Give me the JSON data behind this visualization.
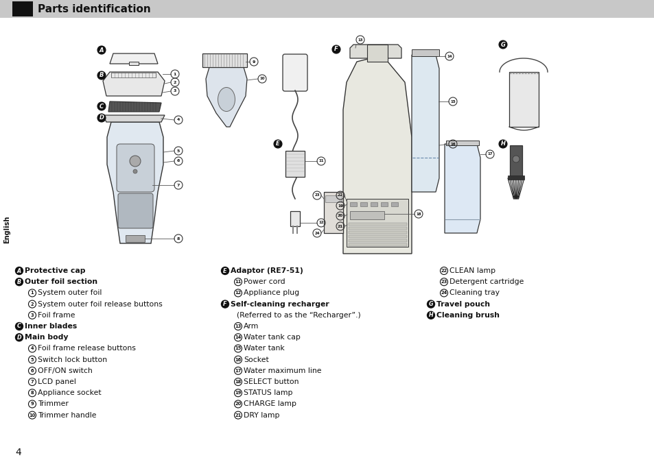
{
  "title": "Parts identification",
  "title_bg": "#c8c8c8",
  "title_black_rect": "#111111",
  "sidebar_label": "English",
  "sidebar_bg": "#ffffff",
  "sidebar_text_color": "#111111",
  "page_bg": "#ffffff",
  "page_number": "4",
  "col1_lines": [
    {
      "icon": "A",
      "bold": true,
      "text": "Protective cap"
    },
    {
      "icon": "B",
      "bold": true,
      "text": "Outer foil section"
    },
    {
      "icon": "1",
      "bold": false,
      "text": "System outer foil"
    },
    {
      "icon": "2",
      "bold": false,
      "text": "System outer foil release buttons"
    },
    {
      "icon": "3",
      "bold": false,
      "text": "Foil frame"
    },
    {
      "icon": "C",
      "bold": true,
      "text": "Inner blades"
    },
    {
      "icon": "D",
      "bold": true,
      "text": "Main body"
    },
    {
      "icon": "4",
      "bold": false,
      "text": "Foil frame release buttons"
    },
    {
      "icon": "5",
      "bold": false,
      "text": "Switch lock button"
    },
    {
      "icon": "6",
      "bold": false,
      "text": "OFF/ON switch"
    },
    {
      "icon": "7",
      "bold": false,
      "text": "LCD panel"
    },
    {
      "icon": "8",
      "bold": false,
      "text": "Appliance socket"
    },
    {
      "icon": "9",
      "bold": false,
      "text": "Trimmer"
    },
    {
      "icon": "10",
      "bold": false,
      "text": "Trimmer handle"
    }
  ],
  "col2_lines": [
    {
      "icon": "E",
      "bold": true,
      "text": "Adaptor (RE7-51)"
    },
    {
      "icon": "11",
      "bold": false,
      "text": "Power cord"
    },
    {
      "icon": "12",
      "bold": false,
      "text": "Appliance plug"
    },
    {
      "icon": "F",
      "bold": true,
      "text": "Self-cleaning recharger"
    },
    {
      "icon": "",
      "bold": false,
      "text": "(Referred to as the “Recharger”.)"
    },
    {
      "icon": "13",
      "bold": false,
      "text": "Arm"
    },
    {
      "icon": "14",
      "bold": false,
      "text": "Water tank cap"
    },
    {
      "icon": "15",
      "bold": false,
      "text": "Water tank"
    },
    {
      "icon": "16",
      "bold": false,
      "text": "Socket"
    },
    {
      "icon": "17",
      "bold": false,
      "text": "Water maximum line"
    },
    {
      "icon": "18",
      "bold": false,
      "text": "SELECT button"
    },
    {
      "icon": "19",
      "bold": false,
      "text": "STATUS lamp"
    },
    {
      "icon": "20",
      "bold": false,
      "text": "CHARGE lamp"
    },
    {
      "icon": "21",
      "bold": false,
      "text": "DRY lamp"
    }
  ],
  "col3_lines": [
    {
      "icon": "22",
      "bold": false,
      "text": "CLEAN lamp"
    },
    {
      "icon": "23",
      "bold": false,
      "text": "Detergent cartridge"
    },
    {
      "icon": "24",
      "bold": false,
      "text": "Cleaning tray"
    },
    {
      "icon": "G",
      "bold": true,
      "text": "Travel pouch"
    },
    {
      "icon": "H",
      "bold": true,
      "text": "Cleaning brush"
    }
  ]
}
